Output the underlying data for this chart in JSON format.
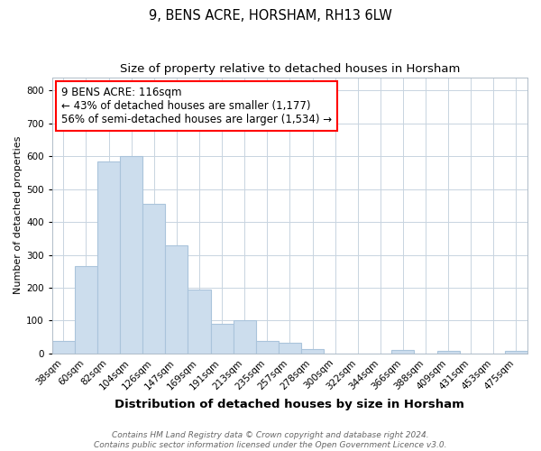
{
  "title": "9, BENS ACRE, HORSHAM, RH13 6LW",
  "subtitle": "Size of property relative to detached houses in Horsham",
  "xlabel": "Distribution of detached houses by size in Horsham",
  "ylabel": "Number of detached properties",
  "categories": [
    "38sqm",
    "60sqm",
    "82sqm",
    "104sqm",
    "126sqm",
    "147sqm",
    "169sqm",
    "191sqm",
    "213sqm",
    "235sqm",
    "257sqm",
    "278sqm",
    "300sqm",
    "322sqm",
    "344sqm",
    "366sqm",
    "388sqm",
    "409sqm",
    "431sqm",
    "453sqm",
    "475sqm"
  ],
  "values": [
    38,
    265,
    585,
    600,
    455,
    330,
    195,
    90,
    100,
    37,
    32,
    13,
    0,
    0,
    0,
    10,
    0,
    8,
    0,
    0,
    7
  ],
  "bar_color": "#ccdded",
  "bar_edge_color": "#aac4db",
  "annotation_box_text": "9 BENS ACRE: 116sqm\n← 43% of detached houses are smaller (1,177)\n56% of semi-detached houses are larger (1,534) →",
  "annotation_box_color": "white",
  "annotation_box_edge_color": "red",
  "ylim": [
    0,
    840
  ],
  "yticks": [
    0,
    100,
    200,
    300,
    400,
    500,
    600,
    700,
    800
  ],
  "footer_line1": "Contains HM Land Registry data © Crown copyright and database right 2024.",
  "footer_line2": "Contains public sector information licensed under the Open Government Licence v3.0.",
  "title_fontsize": 10.5,
  "subtitle_fontsize": 9.5,
  "xlabel_fontsize": 9.5,
  "ylabel_fontsize": 8,
  "tick_fontsize": 7.5,
  "annotation_fontsize": 8.5,
  "footer_fontsize": 6.5,
  "background_color": "#ffffff",
  "plot_bg_color": "#ffffff",
  "grid_color": "#c8d4e0"
}
